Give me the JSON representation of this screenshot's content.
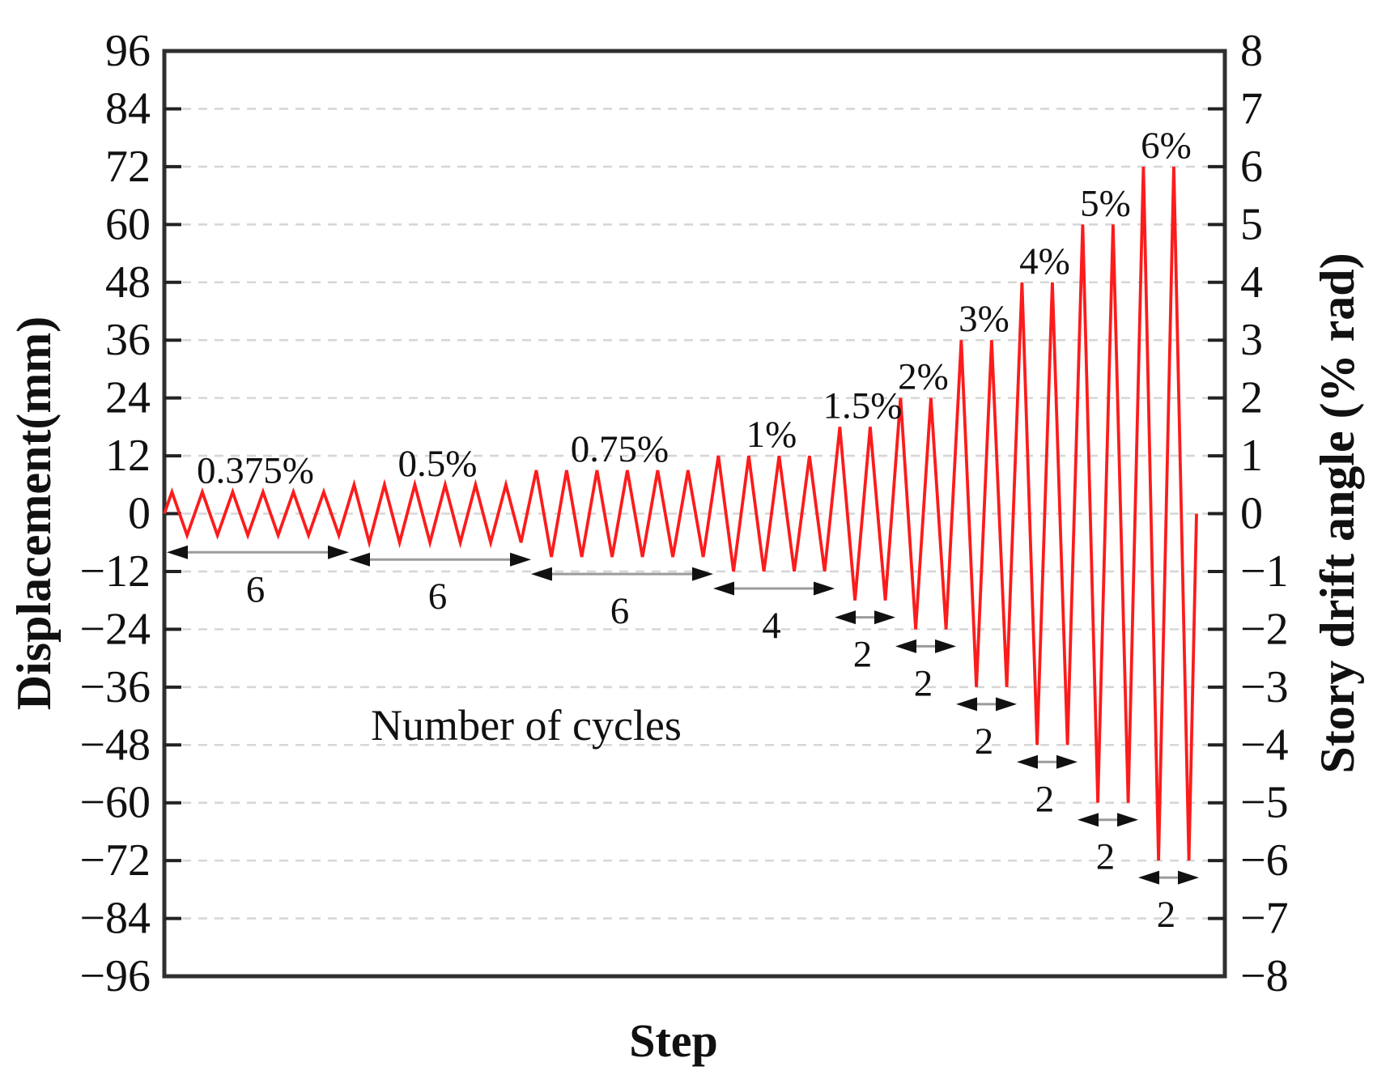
{
  "figure": {
    "background": "#ffffff"
  },
  "chart_data": {
    "type": "line",
    "title": "",
    "xlabel": "Step",
    "ylabel_left": "Displacement(mm)",
    "ylabel_right": "Story drift angle (% rad)",
    "center_annotation": "Number of cycles",
    "line_color": "#fb1c1c",
    "frame_color": "#2f2f2f",
    "grid": {
      "show": true,
      "style": "dashed",
      "color": "#d6d6d6"
    },
    "axes": {
      "left": {
        "min": -96,
        "max": 96,
        "tick_step": 12,
        "tick_labels": [
          "96",
          "84",
          "72",
          "60",
          "48",
          "36",
          "24",
          "12",
          "0",
          "−12",
          "−24",
          "−36",
          "−48",
          "−60",
          "−72",
          "−84",
          "−96"
        ]
      },
      "right": {
        "min": -8,
        "max": 8,
        "tick_step": 1,
        "tick_labels": [
          "8",
          "7",
          "6",
          "5",
          "4",
          "3",
          "2",
          "1",
          "0",
          "−1",
          "−2",
          "−3",
          "−4",
          "−5",
          "−6",
          "−7",
          "−8"
        ]
      },
      "x": {
        "tick_labels": []
      }
    },
    "waveform": {
      "shape": "triangle-cycles",
      "starts_at_mm": 0,
      "ends_at_mm": 0,
      "mm_per_percent_rad": 12
    },
    "groups": [
      {
        "drift_label": "0.375%",
        "drift_pct": 0.375,
        "amplitude_mm": 4.5,
        "cycles": 6
      },
      {
        "drift_label": "0.5%",
        "drift_pct": 0.5,
        "amplitude_mm": 6,
        "cycles": 6
      },
      {
        "drift_label": "0.75%",
        "drift_pct": 0.75,
        "amplitude_mm": 9,
        "cycles": 6
      },
      {
        "drift_label": "1%",
        "drift_pct": 1,
        "amplitude_mm": 12,
        "cycles": 4
      },
      {
        "drift_label": "1.5%",
        "drift_pct": 1.5,
        "amplitude_mm": 18,
        "cycles": 2
      },
      {
        "drift_label": "2%",
        "drift_pct": 2,
        "amplitude_mm": 24,
        "cycles": 2
      },
      {
        "drift_label": "3%",
        "drift_pct": 3,
        "amplitude_mm": 36,
        "cycles": 2
      },
      {
        "drift_label": "4%",
        "drift_pct": 4,
        "amplitude_mm": 48,
        "cycles": 2
      },
      {
        "drift_label": "5%",
        "drift_pct": 5,
        "amplitude_mm": 60,
        "cycles": 2
      },
      {
        "drift_label": "6%",
        "drift_pct": 6,
        "amplitude_mm": 72,
        "cycles": 2
      }
    ]
  }
}
